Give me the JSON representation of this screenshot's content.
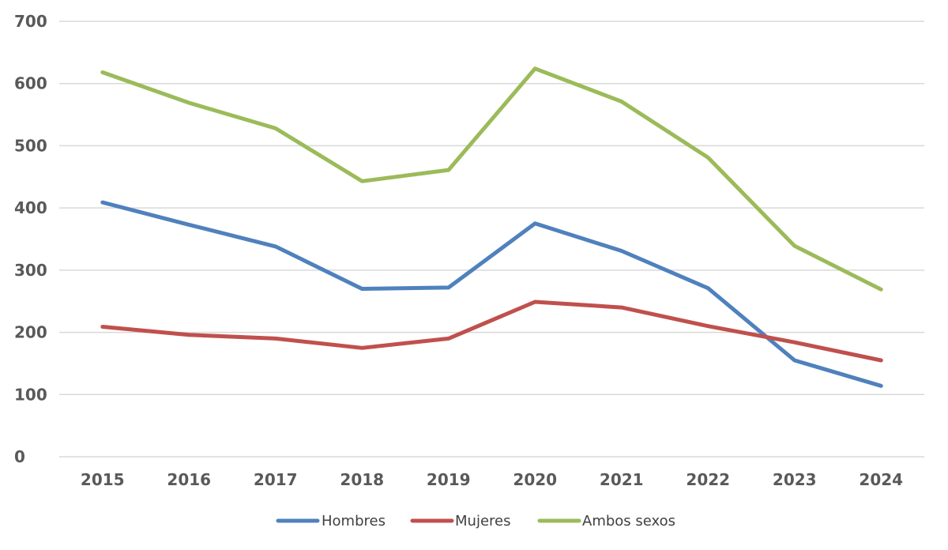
{
  "chart_data": {
    "type": "line",
    "title": "",
    "xlabel": "",
    "ylabel": "",
    "ylim": [
      0,
      700
    ],
    "yticks": [
      "0",
      "100",
      "200",
      "300",
      "400",
      "500",
      "600",
      "700"
    ],
    "categories": [
      "2015",
      "2016",
      "2017",
      "2018",
      "2019",
      "2020",
      "2021",
      "2022",
      "2023",
      "2024"
    ],
    "grid": true,
    "legend_position": "bottom",
    "series": [
      {
        "name": "Hombres",
        "color": "#4f81bd",
        "values": [
          409,
          373,
          338,
          270,
          272,
          375,
          331,
          271,
          155,
          114
        ]
      },
      {
        "name": "Mujeres",
        "color": "#c0504d",
        "values": [
          209,
          196,
          190,
          175,
          190,
          249,
          240,
          210,
          184,
          155
        ]
      },
      {
        "name": "Ambos sexos",
        "color": "#9bbb59",
        "values": [
          618,
          569,
          528,
          443,
          461,
          624,
          571,
          481,
          339,
          269
        ]
      }
    ]
  }
}
